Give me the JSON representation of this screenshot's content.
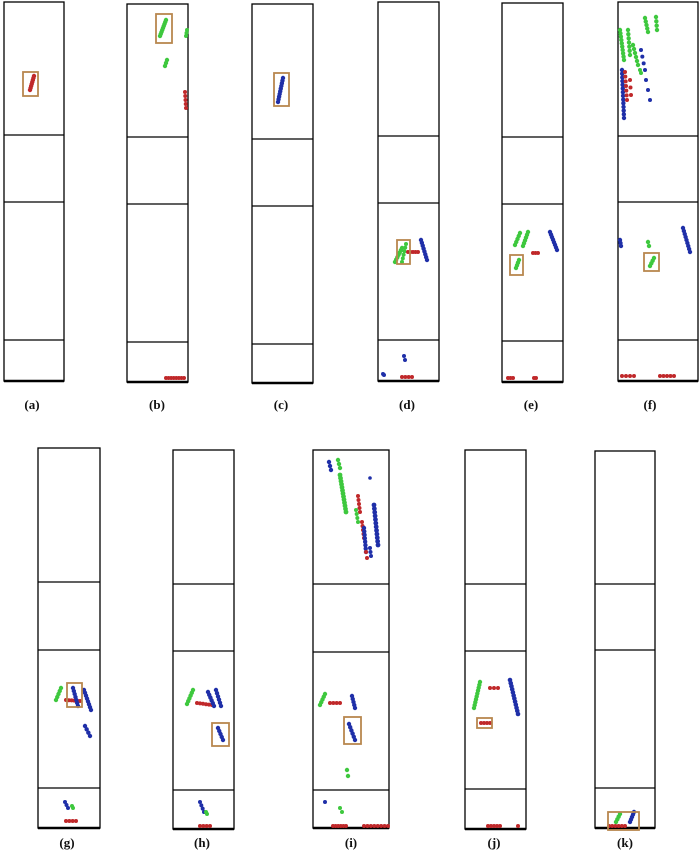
{
  "figure": {
    "colors": {
      "red": "#c0282a",
      "green": "#3ec83e",
      "blue": "#1f2fa8",
      "box": "#b8874f",
      "frame": "#000000"
    },
    "panels": [
      {
        "id": "a",
        "label": "(a)"
      },
      {
        "id": "b",
        "label": "(b)"
      },
      {
        "id": "c",
        "label": "(c)"
      },
      {
        "id": "d",
        "label": "(d)"
      },
      {
        "id": "e",
        "label": "(e)"
      },
      {
        "id": "f",
        "label": "(f)"
      },
      {
        "id": "g",
        "label": "(g)"
      },
      {
        "id": "h",
        "label": "(h)"
      },
      {
        "id": "i",
        "label": "(i)"
      },
      {
        "id": "j",
        "label": "(j)"
      },
      {
        "id": "k",
        "label": "(k)"
      }
    ]
  }
}
